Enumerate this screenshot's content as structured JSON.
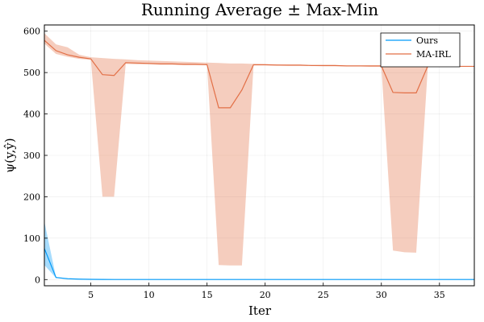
{
  "chart_data": {
    "type": "line",
    "title": "Running Average ± Max-Min",
    "xlabel": "Iter",
    "ylabel": "ψ(y,ŷ)",
    "xlim": [
      1,
      38
    ],
    "ylim": [
      -15,
      615
    ],
    "x_ticks": [
      5,
      10,
      15,
      20,
      25,
      30,
      35
    ],
    "y_ticks": [
      0,
      100,
      200,
      300,
      400,
      500,
      600
    ],
    "grid": true,
    "legend_position": "top-right",
    "series": [
      {
        "name": "Ours",
        "color": "#009af9",
        "band_color": "#009af9",
        "x": [
          1,
          2,
          3,
          4,
          5,
          6,
          7,
          8,
          9,
          10,
          11,
          12,
          13,
          14,
          15,
          16,
          17,
          18,
          19,
          20,
          21,
          22,
          23,
          24,
          25,
          26,
          27,
          28,
          29,
          30,
          31,
          32,
          33,
          34,
          35,
          36,
          37,
          38
        ],
        "y": [
          75,
          5,
          2,
          1,
          0.5,
          0.3,
          0.2,
          0.2,
          0.2,
          0.2,
          0.2,
          0.2,
          0.2,
          0.2,
          0.2,
          0.2,
          0.2,
          0.2,
          0.2,
          0.2,
          0.2,
          0.2,
          0.2,
          0.2,
          0.2,
          0.2,
          0.2,
          0.2,
          0.2,
          0.2,
          0.2,
          0.2,
          0.2,
          0.2,
          0.2,
          0.2,
          0.2,
          0.2
        ],
        "upper": [
          140,
          6,
          2.5,
          1.2,
          0.6,
          0.4,
          0.3,
          0.3,
          0.3,
          0.3,
          0.3,
          0.3,
          0.3,
          0.3,
          0.3,
          0.3,
          0.3,
          0.3,
          0.3,
          0.3,
          0.3,
          0.3,
          0.3,
          0.3,
          0.3,
          0.3,
          0.3,
          0.3,
          0.3,
          0.3,
          0.3,
          0.3,
          0.3,
          0.3,
          0.3,
          0.3,
          0.3,
          0.3
        ],
        "lower": [
          35,
          4,
          1.5,
          0.8,
          0.4,
          0.2,
          0.1,
          0.1,
          0.1,
          0.1,
          0.1,
          0.1,
          0.1,
          0.1,
          0.1,
          0.1,
          0.1,
          0.1,
          0.1,
          0.1,
          0.1,
          0.1,
          0.1,
          0.1,
          0.1,
          0.1,
          0.1,
          0.1,
          0.1,
          0.1,
          0.1,
          0.1,
          0.1,
          0.1,
          0.1,
          0.1,
          0.1,
          0.1
        ]
      },
      {
        "name": "MA-IRL",
        "color": "#e26f46",
        "band_color": "#e26f46",
        "x": [
          1,
          2,
          3,
          4,
          5,
          6,
          7,
          8,
          9,
          10,
          11,
          12,
          13,
          14,
          15,
          16,
          17,
          18,
          19,
          20,
          21,
          22,
          23,
          24,
          25,
          26,
          27,
          28,
          29,
          30,
          31,
          32,
          33,
          34,
          35,
          36,
          37,
          38
        ],
        "y": [
          578,
          553,
          543,
          537,
          533,
          495,
          493,
          524,
          523,
          522,
          521,
          521,
          520,
          520,
          519,
          415,
          415,
          458,
          519,
          519,
          518,
          518,
          518,
          517,
          517,
          517,
          516,
          516,
          516,
          516,
          452,
          451,
          451,
          516,
          515,
          515,
          515,
          515
        ],
        "upper": [
          595,
          568,
          561,
          543,
          537,
          535,
          533,
          532,
          530,
          529,
          528,
          527,
          526,
          525,
          524,
          523,
          522,
          522,
          521,
          520,
          520,
          519,
          519,
          518,
          518,
          518,
          517,
          517,
          517,
          517,
          517,
          516,
          516,
          516,
          516,
          515,
          515,
          515
        ],
        "lower": [
          570,
          545,
          538,
          533,
          531,
          200,
          200,
          521,
          520,
          520,
          519,
          519,
          518,
          518,
          518,
          35,
          34,
          34,
          517,
          517,
          517,
          516,
          516,
          516,
          515,
          515,
          515,
          515,
          514,
          514,
          70,
          66,
          65,
          514,
          514,
          514,
          514,
          514
        ]
      }
    ]
  }
}
